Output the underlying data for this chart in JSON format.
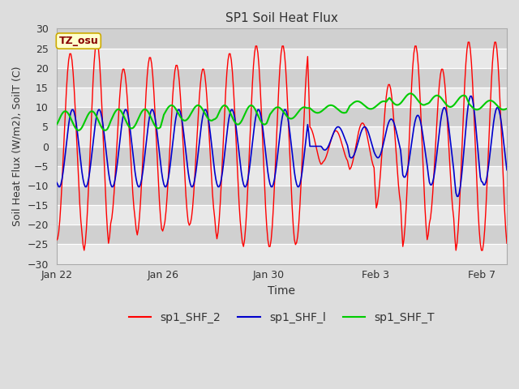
{
  "title": "SP1 Soil Heat Flux",
  "xlabel": "Time",
  "ylabel": "Soil Heat Flux (W/m2), SoilT (C)",
  "ylim": [
    -30,
    30
  ],
  "yticks": [
    -30,
    -25,
    -20,
    -15,
    -10,
    -5,
    0,
    5,
    10,
    15,
    20,
    25,
    30
  ],
  "fig_bg_color": "#dddddd",
  "stripe_light": "#e8e8e8",
  "stripe_dark": "#d0d0d0",
  "grid_color": "#ffffff",
  "tz_label": "TZ_osu",
  "tz_box_facecolor": "#ffffcc",
  "tz_box_edgecolor": "#ccaa00",
  "tz_text_color": "#880000",
  "line_colors": {
    "sp1_SHF_2": "#ff0000",
    "sp1_SHF_1": "#0000cc",
    "sp1_SHF_T": "#00cc00"
  },
  "legend_labels": [
    "sp1_SHF_2",
    "sp1_SHF_l",
    "sp1_SHF_T"
  ],
  "x_tick_labels": [
    "Jan 22",
    "Jan 26",
    "Jan 30",
    "Feb 3",
    "Feb 7"
  ],
  "n_points": 408,
  "hours_per_day": 24
}
